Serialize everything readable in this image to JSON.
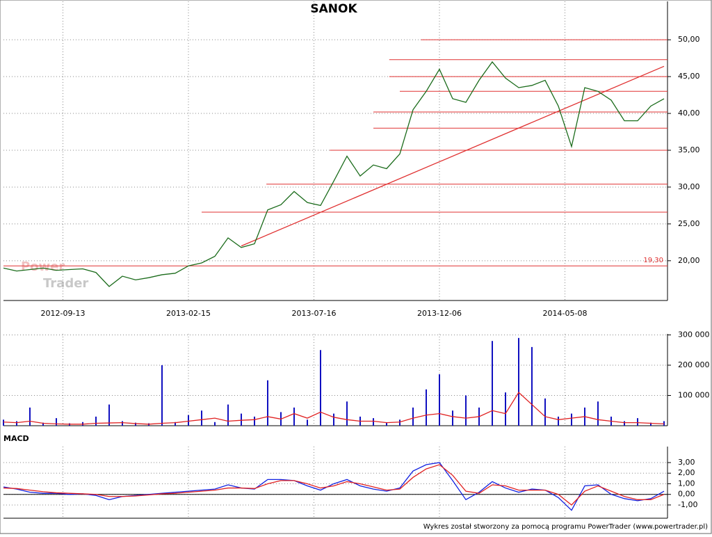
{
  "chart_data": [
    {
      "type": "line",
      "title": "SANOK",
      "watermark": [
        "Power",
        "Trader"
      ],
      "x": [
        0,
        1,
        2,
        3,
        4,
        5,
        6,
        7,
        8,
        9,
        10,
        11,
        12,
        13,
        14,
        15,
        16,
        17,
        18,
        19,
        20,
        21,
        22,
        23,
        24,
        25,
        26,
        27,
        28,
        29,
        30,
        31,
        32,
        33,
        34,
        35,
        36,
        37,
        38,
        39,
        40,
        41,
        42,
        43,
        44,
        45,
        46,
        47,
        48,
        49,
        50
      ],
      "values": [
        19.0,
        18.6,
        18.8,
        19.0,
        18.7,
        18.8,
        18.9,
        18.4,
        16.5,
        17.9,
        17.4,
        17.7,
        18.1,
        18.3,
        19.3,
        19.7,
        20.6,
        23.1,
        21.8,
        22.3,
        26.9,
        27.6,
        29.4,
        27.9,
        27.5,
        30.8,
        34.2,
        31.5,
        33.0,
        32.5,
        34.5,
        40.5,
        43.0,
        46.0,
        42.0,
        41.5,
        44.5,
        47.0,
        44.8,
        43.5,
        43.8,
        44.5,
        41.0,
        35.5,
        43.5,
        43.0,
        41.8,
        39.0,
        39.0,
        41.0,
        42.0
      ],
      "color": "#1a6b1a",
      "levels": [
        {
          "value": 50,
          "start": 31.6
        },
        {
          "value": 47.3,
          "start": 29.2
        },
        {
          "value": 45,
          "start": 29.2
        },
        {
          "value": 43,
          "start": 30
        },
        {
          "value": 40.2,
          "start": 28
        },
        {
          "value": 38,
          "start": 28
        },
        {
          "value": 35,
          "start": 24.7
        },
        {
          "value": 30.4,
          "start": 19.9
        },
        {
          "value": 26.6,
          "start": 15
        },
        {
          "value": 19.3,
          "start": 0,
          "label": "19,30"
        }
      ],
      "level_color": "#e03030",
      "trendline": {
        "x": [
          18,
          50
        ],
        "y": [
          22,
          46.4
        ]
      },
      "xlim": [
        0,
        50
      ],
      "xticks": [
        {
          "value": 4.5,
          "label": "2012-09-13"
        },
        {
          "value": 14,
          "label": "2013-02-15"
        },
        {
          "value": 23.5,
          "label": "2013-07-16"
        },
        {
          "value": 33,
          "label": "2013-12-06"
        },
        {
          "value": 42.5,
          "label": "2014-05-08"
        }
      ],
      "ylim": [
        14.6,
        55.4
      ],
      "yticks": [
        {
          "value": 20,
          "label": "20,00"
        },
        {
          "value": 25,
          "label": "25,00"
        },
        {
          "value": 30,
          "label": "30,00"
        },
        {
          "value": 35,
          "label": "35,00"
        },
        {
          "value": 40,
          "label": "40,00"
        },
        {
          "value": 45,
          "label": "45,00"
        },
        {
          "value": 50,
          "label": "50,00"
        }
      ],
      "grid": true
    },
    {
      "type": "bar",
      "values": [
        20000,
        15000,
        60000,
        10000,
        25000,
        8000,
        12000,
        30000,
        70000,
        15000,
        10000,
        8000,
        200000,
        12000,
        35000,
        50000,
        12000,
        70000,
        40000,
        30000,
        150000,
        45000,
        60000,
        20000,
        250000,
        40000,
        80000,
        30000,
        25000,
        10000,
        20000,
        60000,
        120000,
        170000,
        50000,
        100000,
        60000,
        280000,
        110000,
        290000,
        260000,
        90000,
        30000,
        40000,
        60000,
        80000,
        30000,
        15000,
        25000,
        10000,
        15000
      ],
      "color": "#1010c0",
      "average": {
        "values": [
          12000,
          10000,
          15000,
          8000,
          6000,
          5000,
          5000,
          8000,
          9000,
          10000,
          7000,
          5000,
          8000,
          10000,
          15000,
          20000,
          25000,
          15000,
          18000,
          20000,
          30000,
          22000,
          40000,
          25000,
          45000,
          28000,
          20000,
          15000,
          15000,
          10000,
          12000,
          25000,
          35000,
          40000,
          30000,
          25000,
          30000,
          50000,
          40000,
          110000,
          70000,
          30000,
          20000,
          25000,
          30000,
          20000,
          15000,
          10000,
          10000,
          8000,
          6000
        ],
        "color": "#e02020"
      },
      "xlim": [
        0,
        50
      ],
      "ylim": [
        0,
        308000
      ],
      "yticks": [
        {
          "value": 100000,
          "label": "100 000"
        },
        {
          "value": 200000,
          "label": "200 000"
        },
        {
          "value": 300000,
          "label": "300 000"
        }
      ],
      "grid": true
    },
    {
      "type": "line",
      "title": "MACD",
      "series": [
        {
          "color": "#1020e0",
          "values": [
            0.7,
            0.5,
            0.2,
            0.1,
            0.1,
            0,
            0.05,
            -0.1,
            -0.5,
            -0.2,
            -0.1,
            0,
            0.1,
            0.2,
            0.3,
            0.4,
            0.5,
            0.9,
            0.6,
            0.5,
            1.4,
            1.4,
            1.3,
            0.8,
            0.4,
            1.0,
            1.4,
            0.8,
            0.5,
            0.3,
            0.6,
            2.2,
            2.8,
            3.0,
            1.3,
            -0.5,
            0.2,
            1.2,
            0.6,
            0.2,
            0.5,
            0.4,
            -0.3,
            -1.5,
            0.8,
            0.9,
            0,
            -0.4,
            -0.6,
            -0.4,
            0.3
          ]
        },
        {
          "color": "#e02020",
          "values": [
            0.6,
            0.55,
            0.4,
            0.25,
            0.15,
            0.1,
            0.05,
            0,
            -0.2,
            -0.2,
            -0.15,
            -0.05,
            0.05,
            0.1,
            0.2,
            0.3,
            0.4,
            0.6,
            0.6,
            0.55,
            1.0,
            1.3,
            1.3,
            1.0,
            0.6,
            0.8,
            1.2,
            1.0,
            0.7,
            0.4,
            0.5,
            1.6,
            2.4,
            2.8,
            1.8,
            0.3,
            0.1,
            0.9,
            0.8,
            0.4,
            0.4,
            0.4,
            0,
            -1.0,
            0.3,
            0.8,
            0.3,
            -0.2,
            -0.5,
            -0.5,
            0
          ]
        }
      ],
      "xlim": [
        0,
        50
      ],
      "ylim": [
        -2.25,
        4.64
      ],
      "yticks": [
        {
          "value": -1,
          "label": "-1,00"
        },
        {
          "value": 0,
          "label": "0,00"
        },
        {
          "value": 1,
          "label": "1,00"
        },
        {
          "value": 2,
          "label": "2,00"
        },
        {
          "value": 3,
          "label": "3,00"
        }
      ],
      "grid": true
    }
  ],
  "footer": "Wykres został stworzony za pomocą programu PowerTrader (www.powertrader.pl)"
}
